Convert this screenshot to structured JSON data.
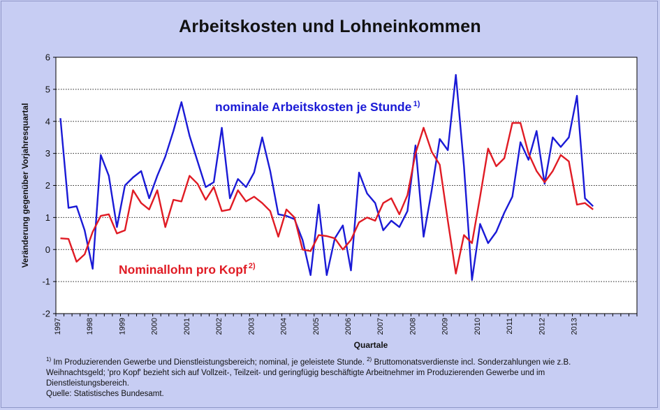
{
  "title": "Arbeitskosten und Lohneinkommen",
  "colors": {
    "series1": "#1a1ad6",
    "series2": "#e01b24",
    "background": "#c7cdf3",
    "plot": "#ffffff"
  },
  "footnotes": {
    "sup1": "1)",
    "line1_a": "Im Produzierenden Gewerbe und Dienstleistungsbereich; nominal, je geleistete Stunde.",
    "sup2": "2)",
    "line1_b": "Bruttomonatsverdienste incl. Sonderzahlungen wie z.B.",
    "line2": "Weihnachtsgeld; 'pro Kopf' bezieht sich auf Vollzeit-, Teilzeit- und geringfügig beschäftigte Arbeitnehmer im Produzierenden Gewerbe und im",
    "line3": "Dienstleistungsbereich.",
    "line4": "Quelle: Statistisches Bundesamt."
  },
  "chart_data": {
    "type": "line",
    "title": "Arbeitskosten und Lohneinkommen",
    "xlabel": "Quartale",
    "ylabel": "Veränderung gegenüber Vorjahresquartal",
    "ylim": [
      -2,
      6
    ],
    "yticks": [
      -2,
      -1,
      0,
      1,
      2,
      3,
      4,
      5,
      6
    ],
    "years": [
      "1997",
      "1998",
      "1999",
      "2000",
      "2001",
      "2002",
      "2003",
      "2004",
      "2005",
      "2006",
      "2007",
      "2008",
      "2009",
      "2010",
      "2011",
      "2012",
      "2013"
    ],
    "grid": "horizontal dotted",
    "series": [
      {
        "name": "nominale Arbeitskosten je Stunde",
        "sup": "1)",
        "values": [
          4.1,
          1.3,
          1.35,
          0.6,
          -0.6,
          2.95,
          2.3,
          0.7,
          2.0,
          2.25,
          2.45,
          1.6,
          2.3,
          2.9,
          3.7,
          4.6,
          3.55,
          2.75,
          1.95,
          2.1,
          3.8,
          1.6,
          2.2,
          1.95,
          2.4,
          3.5,
          2.45,
          1.1,
          1.05,
          0.95,
          0.3,
          -0.8,
          1.4,
          -0.8,
          0.35,
          0.75,
          -0.65,
          2.4,
          1.75,
          1.45,
          0.6,
          0.9,
          0.7,
          1.2,
          3.25,
          0.4,
          1.85,
          3.45,
          3.1,
          5.45,
          2.6,
          -0.95,
          0.8,
          0.2,
          0.55,
          1.15,
          1.65,
          3.35,
          2.8,
          3.7,
          2.05,
          3.5,
          3.2,
          3.5,
          4.8,
          1.6,
          1.35
        ]
      },
      {
        "name": "Nominallohn pro Kopf",
        "sup": "2)",
        "values": [
          0.35,
          0.33,
          -0.38,
          -0.15,
          0.55,
          1.05,
          1.1,
          0.5,
          0.6,
          1.85,
          1.45,
          1.25,
          1.85,
          0.7,
          1.55,
          1.5,
          2.3,
          2.05,
          1.55,
          1.95,
          1.2,
          1.25,
          1.85,
          1.5,
          1.65,
          1.45,
          1.2,
          0.4,
          1.25,
          1.0,
          0.0,
          -0.05,
          0.45,
          0.42,
          0.35,
          0.0,
          0.3,
          0.85,
          1.0,
          0.9,
          1.45,
          1.6,
          1.1,
          1.7,
          3.0,
          3.8,
          3.05,
          2.65,
          0.9,
          -0.75,
          0.45,
          0.2,
          1.65,
          3.15,
          2.6,
          2.85,
          3.95,
          3.95,
          3.0,
          2.45,
          2.1,
          2.45,
          2.95,
          2.75,
          1.4,
          1.45,
          1.25
        ]
      }
    ],
    "annotations": [
      {
        "text": "nominale Arbeitskosten je Stunde",
        "sup": "1)"
      },
      {
        "text": "Nominallohn pro Kopf",
        "sup": "2)"
      }
    ]
  }
}
